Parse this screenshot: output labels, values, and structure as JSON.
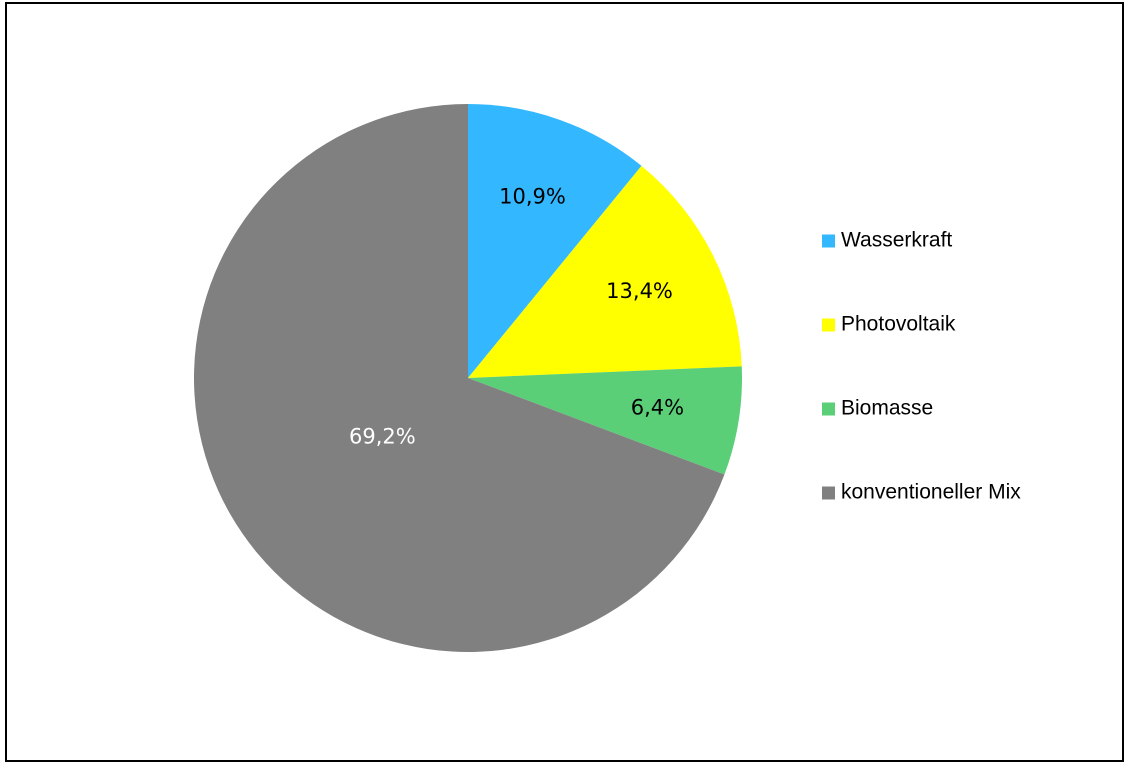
{
  "chart_data": {
    "type": "pie",
    "categories": [
      "Wasserkraft",
      "Photovoltaik",
      "Biomasse",
      "konventioneller Mix"
    ],
    "values": [
      10.9,
      13.4,
      6.4,
      69.2
    ],
    "data_labels": [
      "10,9%",
      "13,4%",
      "6,4%",
      "69,2%"
    ],
    "colors": [
      "#33b8ff",
      "#ffff00",
      "#5bcf78",
      "#808080"
    ],
    "label_colors": [
      "#000000",
      "#000000",
      "#000000",
      "#ffffff"
    ],
    "start_angle": "12 o'clock",
    "direction": "clockwise",
    "legend": {
      "position": "right",
      "entries": [
        "Wasserkraft",
        "Photovoltaik",
        "Biomasse",
        "konventioneller Mix"
      ]
    },
    "title": ""
  }
}
